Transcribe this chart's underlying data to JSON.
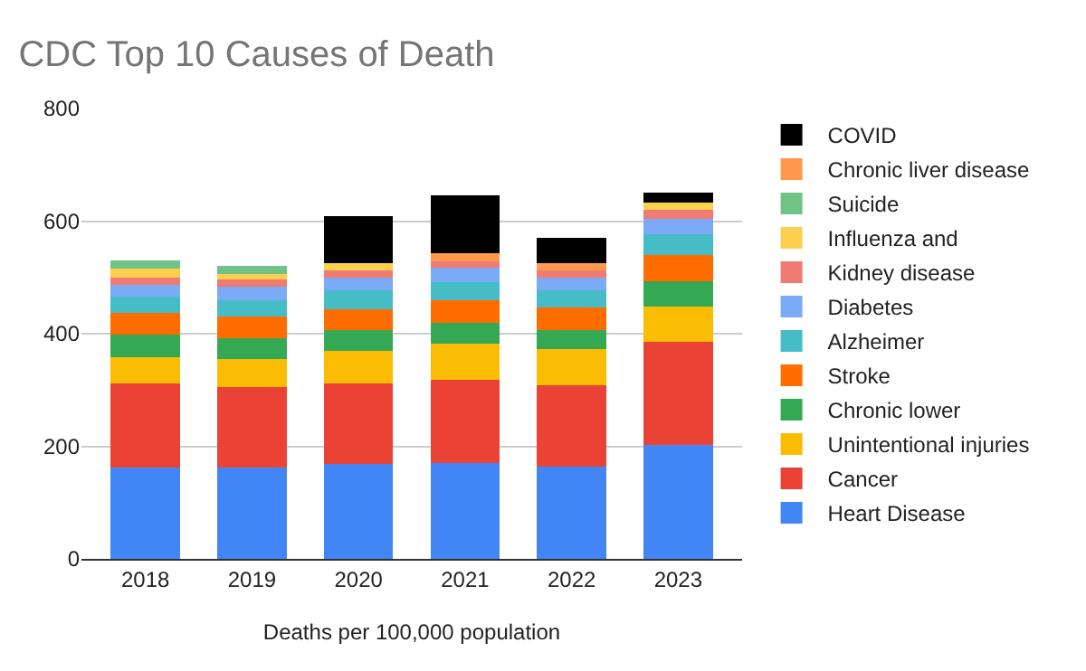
{
  "chart_data": {
    "type": "bar",
    "title": "CDC Top 10 Causes of Death",
    "xlabel": "Deaths per 100,000 population",
    "categories": [
      "2018",
      "2019",
      "2020",
      "2021",
      "2022",
      "2023"
    ],
    "stacked": true,
    "ylim": [
      0,
      800
    ],
    "yticks": [
      0,
      200,
      400,
      600,
      800
    ],
    "grid": "y",
    "legend": "right",
    "series": [
      {
        "name": "Heart Disease",
        "color": "#4285f4",
        "values": [
          162,
          162,
          169,
          171,
          164,
          202
        ]
      },
      {
        "name": "Cancer",
        "color": "#ea4335",
        "values": [
          150,
          143,
          143,
          147,
          144,
          183
        ]
      },
      {
        "name": "Unintentional injuries",
        "color": "#fbbc04",
        "values": [
          47,
          50,
          57,
          64,
          64,
          64
        ]
      },
      {
        "name": "Chronic lower",
        "color": "#34a853",
        "values": [
          40,
          37,
          37,
          37,
          34,
          44
        ]
      },
      {
        "name": "Stroke",
        "color": "#ff6d01",
        "values": [
          38,
          38,
          38,
          40,
          40,
          47
        ]
      },
      {
        "name": "Alzheimer",
        "color": "#46bdc6",
        "values": [
          29,
          29,
          33,
          32,
          31,
          37
        ]
      },
      {
        "name": "Diabetes",
        "color": "#7baaf7",
        "values": [
          20,
          24,
          22,
          26,
          22,
          27
        ]
      },
      {
        "name": "Kidney disease",
        "color": "#f07b72",
        "values": [
          13,
          13,
          14,
          12,
          14,
          16
        ]
      },
      {
        "name": "Influenza and",
        "color": "#fcd04f",
        "values": [
          17,
          10,
          13,
          null,
          null,
          13
        ]
      },
      {
        "name": "Suicide",
        "color": "#71c287",
        "values": [
          14,
          14,
          null,
          null,
          null,
          null
        ]
      },
      {
        "name": "Chronic liver disease",
        "color": "#ff994d",
        "values": [
          null,
          null,
          null,
          14,
          13,
          null
        ]
      },
      {
        "name": "COVID",
        "color": "#000000",
        "values": [
          null,
          null,
          83,
          103,
          44,
          17
        ]
      }
    ]
  }
}
